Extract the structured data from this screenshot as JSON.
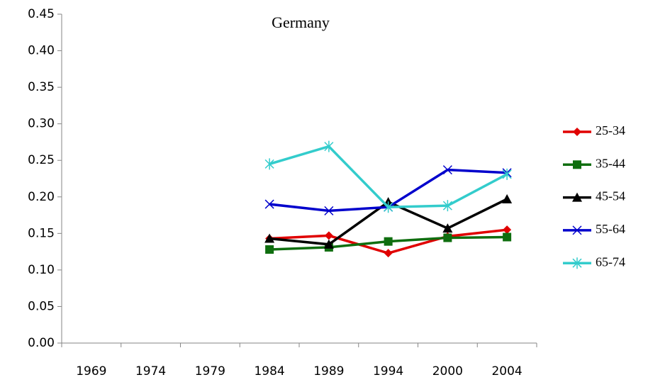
{
  "chart_data": {
    "type": "line",
    "title": "Germany",
    "categories": [
      "1969",
      "1974",
      "1979",
      "1984",
      "1989",
      "1994",
      "2000",
      "2004"
    ],
    "series": [
      {
        "name": "25-34",
        "color": "#e00000",
        "marker": "diamond",
        "values": [
          null,
          null,
          null,
          0.143,
          0.147,
          0.123,
          0.146,
          0.155
        ]
      },
      {
        "name": "35-44",
        "color": "#0f6e0f",
        "marker": "square",
        "values": [
          null,
          null,
          null,
          0.128,
          0.131,
          0.139,
          0.144,
          0.145
        ]
      },
      {
        "name": "45-54",
        "color": "#000000",
        "marker": "triangle",
        "values": [
          null,
          null,
          null,
          0.143,
          0.135,
          0.193,
          0.157,
          0.197
        ]
      },
      {
        "name": "55-64",
        "color": "#0000cc",
        "marker": "x",
        "values": [
          null,
          null,
          null,
          0.19,
          0.181,
          0.186,
          0.237,
          0.233
        ]
      },
      {
        "name": "65-74",
        "color": "#33cccc",
        "marker": "star",
        "values": [
          null,
          null,
          null,
          0.245,
          0.269,
          0.186,
          0.188,
          0.231
        ]
      }
    ],
    "ylim": [
      0,
      0.45
    ],
    "yticks": [
      {
        "value": 0,
        "label": "0.00"
      },
      0.05,
      {
        "value": 0.1,
        "label": "0.10"
      },
      0.15,
      {
        "value": 0.2,
        "label": "0.20"
      },
      0.25,
      {
        "value": 0.3,
        "label": "0.30"
      },
      0.35,
      {
        "value": 0.4,
        "label": "0.40"
      },
      0.45
    ],
    "grid": false,
    "legend": "right"
  }
}
